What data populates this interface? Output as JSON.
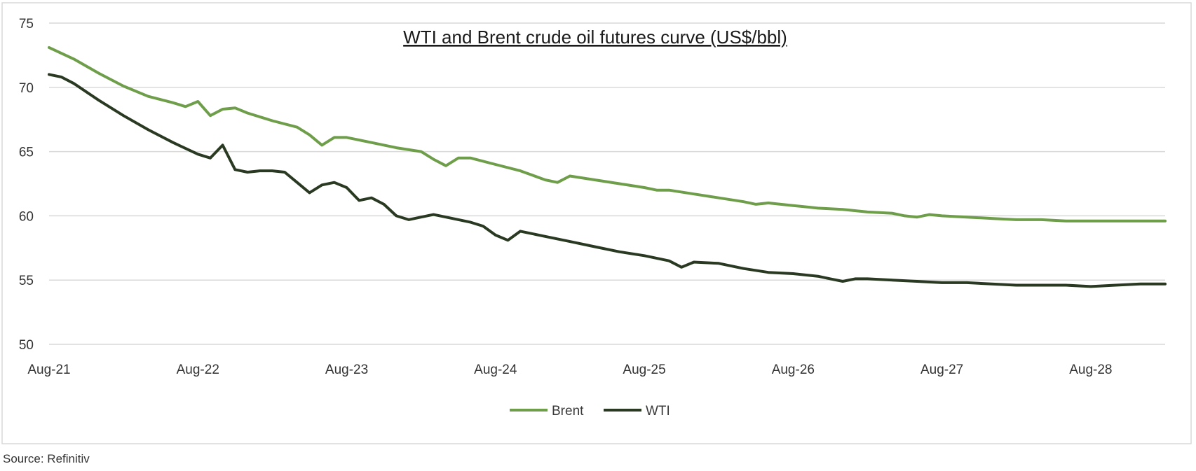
{
  "chart_data": {
    "type": "line",
    "title": "WTI and Brent crude oil futures curve (US$/bbl)",
    "xlabel": "",
    "ylabel": "",
    "ylim": [
      50,
      75
    ],
    "yticks": [
      50,
      55,
      60,
      65,
      70,
      75
    ],
    "xticks": [
      "Aug-21",
      "Aug-22",
      "Aug-23",
      "Aug-24",
      "Aug-25",
      "Aug-26",
      "Aug-27",
      "Aug-28"
    ],
    "x_start": "2021-08",
    "months": 90,
    "grid": true,
    "legend_position": "bottom",
    "source": "Source: Refinitiv",
    "series": [
      {
        "name": "Brent",
        "color": "#6e9e4a",
        "points": [
          [
            0,
            73.1
          ],
          [
            2,
            72.2
          ],
          [
            4,
            71.1
          ],
          [
            6,
            70.1
          ],
          [
            8,
            69.3
          ],
          [
            10,
            68.8
          ],
          [
            11,
            68.5
          ],
          [
            12,
            68.9
          ],
          [
            13,
            67.8
          ],
          [
            14,
            68.3
          ],
          [
            15,
            68.4
          ],
          [
            16,
            68.0
          ],
          [
            18,
            67.4
          ],
          [
            20,
            66.9
          ],
          [
            21,
            66.3
          ],
          [
            22,
            65.5
          ],
          [
            23,
            66.1
          ],
          [
            24,
            66.1
          ],
          [
            26,
            65.7
          ],
          [
            28,
            65.3
          ],
          [
            30,
            65.0
          ],
          [
            31,
            64.4
          ],
          [
            32,
            63.9
          ],
          [
            33,
            64.5
          ],
          [
            34,
            64.5
          ],
          [
            36,
            64.0
          ],
          [
            38,
            63.5
          ],
          [
            40,
            62.8
          ],
          [
            41,
            62.6
          ],
          [
            42,
            63.1
          ],
          [
            44,
            62.8
          ],
          [
            46,
            62.5
          ],
          [
            48,
            62.2
          ],
          [
            49,
            62.0
          ],
          [
            50,
            62.0
          ],
          [
            52,
            61.7
          ],
          [
            54,
            61.4
          ],
          [
            56,
            61.1
          ],
          [
            57,
            60.9
          ],
          [
            58,
            61.0
          ],
          [
            60,
            60.8
          ],
          [
            62,
            60.6
          ],
          [
            64,
            60.5
          ],
          [
            66,
            60.3
          ],
          [
            68,
            60.2
          ],
          [
            69,
            60.0
          ],
          [
            70,
            59.9
          ],
          [
            71,
            60.1
          ],
          [
            72,
            60.0
          ],
          [
            74,
            59.9
          ],
          [
            76,
            59.8
          ],
          [
            78,
            59.7
          ],
          [
            80,
            59.7
          ],
          [
            82,
            59.6
          ],
          [
            84,
            59.6
          ],
          [
            86,
            59.6
          ],
          [
            88,
            59.6
          ],
          [
            90,
            59.6
          ]
        ]
      },
      {
        "name": "WTI",
        "color": "#2a3a22",
        "points": [
          [
            0,
            71.0
          ],
          [
            1,
            70.8
          ],
          [
            2,
            70.3
          ],
          [
            4,
            69.0
          ],
          [
            6,
            67.8
          ],
          [
            8,
            66.7
          ],
          [
            10,
            65.7
          ],
          [
            12,
            64.8
          ],
          [
            13,
            64.5
          ],
          [
            14,
            65.5
          ],
          [
            15,
            63.6
          ],
          [
            16,
            63.4
          ],
          [
            17,
            63.5
          ],
          [
            18,
            63.5
          ],
          [
            19,
            63.4
          ],
          [
            20,
            62.6
          ],
          [
            21,
            61.8
          ],
          [
            22,
            62.4
          ],
          [
            23,
            62.6
          ],
          [
            24,
            62.2
          ],
          [
            25,
            61.2
          ],
          [
            26,
            61.4
          ],
          [
            27,
            60.9
          ],
          [
            28,
            60.0
          ],
          [
            29,
            59.7
          ],
          [
            30,
            59.9
          ],
          [
            31,
            60.1
          ],
          [
            32,
            59.9
          ],
          [
            34,
            59.5
          ],
          [
            35,
            59.2
          ],
          [
            36,
            58.5
          ],
          [
            37,
            58.1
          ],
          [
            38,
            58.8
          ],
          [
            40,
            58.4
          ],
          [
            42,
            58.0
          ],
          [
            44,
            57.6
          ],
          [
            46,
            57.2
          ],
          [
            48,
            56.9
          ],
          [
            50,
            56.5
          ],
          [
            51,
            56.0
          ],
          [
            52,
            56.4
          ],
          [
            54,
            56.3
          ],
          [
            56,
            55.9
          ],
          [
            58,
            55.6
          ],
          [
            60,
            55.5
          ],
          [
            62,
            55.3
          ],
          [
            63,
            55.1
          ],
          [
            64,
            54.9
          ],
          [
            65,
            55.1
          ],
          [
            66,
            55.1
          ],
          [
            68,
            55.0
          ],
          [
            70,
            54.9
          ],
          [
            72,
            54.8
          ],
          [
            74,
            54.8
          ],
          [
            76,
            54.7
          ],
          [
            78,
            54.6
          ],
          [
            80,
            54.6
          ],
          [
            82,
            54.6
          ],
          [
            84,
            54.5
          ],
          [
            86,
            54.6
          ],
          [
            88,
            54.7
          ],
          [
            90,
            54.7
          ]
        ]
      }
    ]
  }
}
